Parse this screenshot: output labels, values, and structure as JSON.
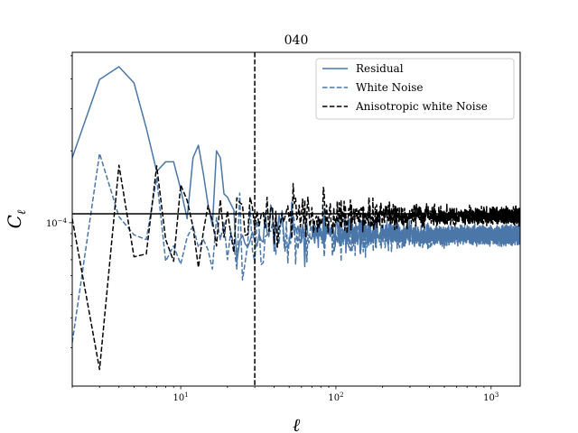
{
  "chart_data": {
    "type": "line",
    "title": "040",
    "xlabel": "ℓ",
    "ylabel": "C",
    "ylabel_sub": "ℓ",
    "xscale": "log",
    "yscale": "log",
    "xlim": [
      2,
      1540
    ],
    "ylim": [
      2.07e-05,
      0.000517
    ],
    "grid": false,
    "legend_placement": "top-right",
    "x_major_ticks": [
      {
        "value": 10,
        "base": "10",
        "exp": "1"
      },
      {
        "value": 100,
        "base": "10",
        "exp": "2"
      },
      {
        "value": 1000,
        "base": "10",
        "exp": "3"
      }
    ],
    "y_major_ticks": [
      {
        "value": 0.0001,
        "base": "10",
        "exp": "−4"
      }
    ],
    "hline": {
      "y": 0.000109,
      "color": "#000000"
    },
    "vline": {
      "x": 30,
      "color": "#000000",
      "style": "dashed"
    },
    "series": [
      {
        "name": "Residual",
        "color": "#4a76a8",
        "style": "solid",
        "ell": [
          2,
          3,
          4,
          5,
          6,
          7,
          8,
          9,
          10,
          11,
          12,
          13,
          14,
          15,
          16,
          17,
          18,
          19,
          20,
          21,
          22
        ],
        "values": [
          0.000187,
          0.000398,
          0.00045,
          0.000385,
          0.000249,
          0.000164,
          0.00018,
          0.00018,
          0.000138,
          0.000104,
          0.000187,
          0.000211,
          0.00016,
          0.000119,
          9.7e-05,
          0.0002,
          0.000187,
          0.000132,
          0.000128,
          0.00012,
          0.000113
        ],
        "high_ell": {
          "from": 23,
          "to": 1540,
          "mean": 9e-05,
          "scatter_dex_at_30": 0.13,
          "seed": 11
        }
      },
      {
        "name": "White Noise",
        "color": "#4a76a8",
        "style": "dashed",
        "ell": [
          2,
          3,
          4,
          5,
          6,
          7,
          8,
          9,
          10,
          11,
          12,
          13,
          14,
          15,
          16,
          17,
          18,
          19,
          20,
          21,
          22,
          23,
          24
        ],
        "values": [
          3.15e-05,
          0.000195,
          0.000106,
          8.9e-05,
          8.5e-05,
          0.000154,
          6.9e-05,
          8e-05,
          6.7e-05,
          8.7e-05,
          9.7e-05,
          7.9e-05,
          8.5e-05,
          7.7e-05,
          6.4e-05,
          0.000105,
          8.5e-05,
          0.0001,
          7e-05,
          9.2e-05,
          8e-05,
          6.4e-05,
          0.000133
        ],
        "high_ell": {
          "from": 25,
          "to": 1540,
          "mean": 8.7e-05,
          "scatter_dex_at_30": 0.14,
          "seed": 23
        }
      },
      {
        "name": "Anisotropic white Noise",
        "color": "#000000",
        "style": "dashed",
        "ell": [
          2,
          3,
          4,
          5,
          6,
          7,
          8,
          9,
          10,
          11,
          12,
          13,
          14,
          15,
          16,
          17,
          18,
          19,
          20,
          21,
          22,
          23
        ],
        "values": [
          0.000104,
          2.43e-05,
          0.000174,
          7.2e-05,
          7.4e-05,
          0.000173,
          8.5e-05,
          6.9e-05,
          0.000144,
          0.000124,
          9.6e-05,
          6.5e-05,
          9.2e-05,
          0.000118,
          0.000102,
          8e-05,
          0.000125,
          8.7e-05,
          0.000112,
          9e-05,
          7.5e-05,
          0.000127
        ],
        "high_ell": {
          "from": 24,
          "to": 1540,
          "mean": 0.000107,
          "scatter_dex_at_30": 0.14,
          "seed": 37
        }
      }
    ]
  }
}
